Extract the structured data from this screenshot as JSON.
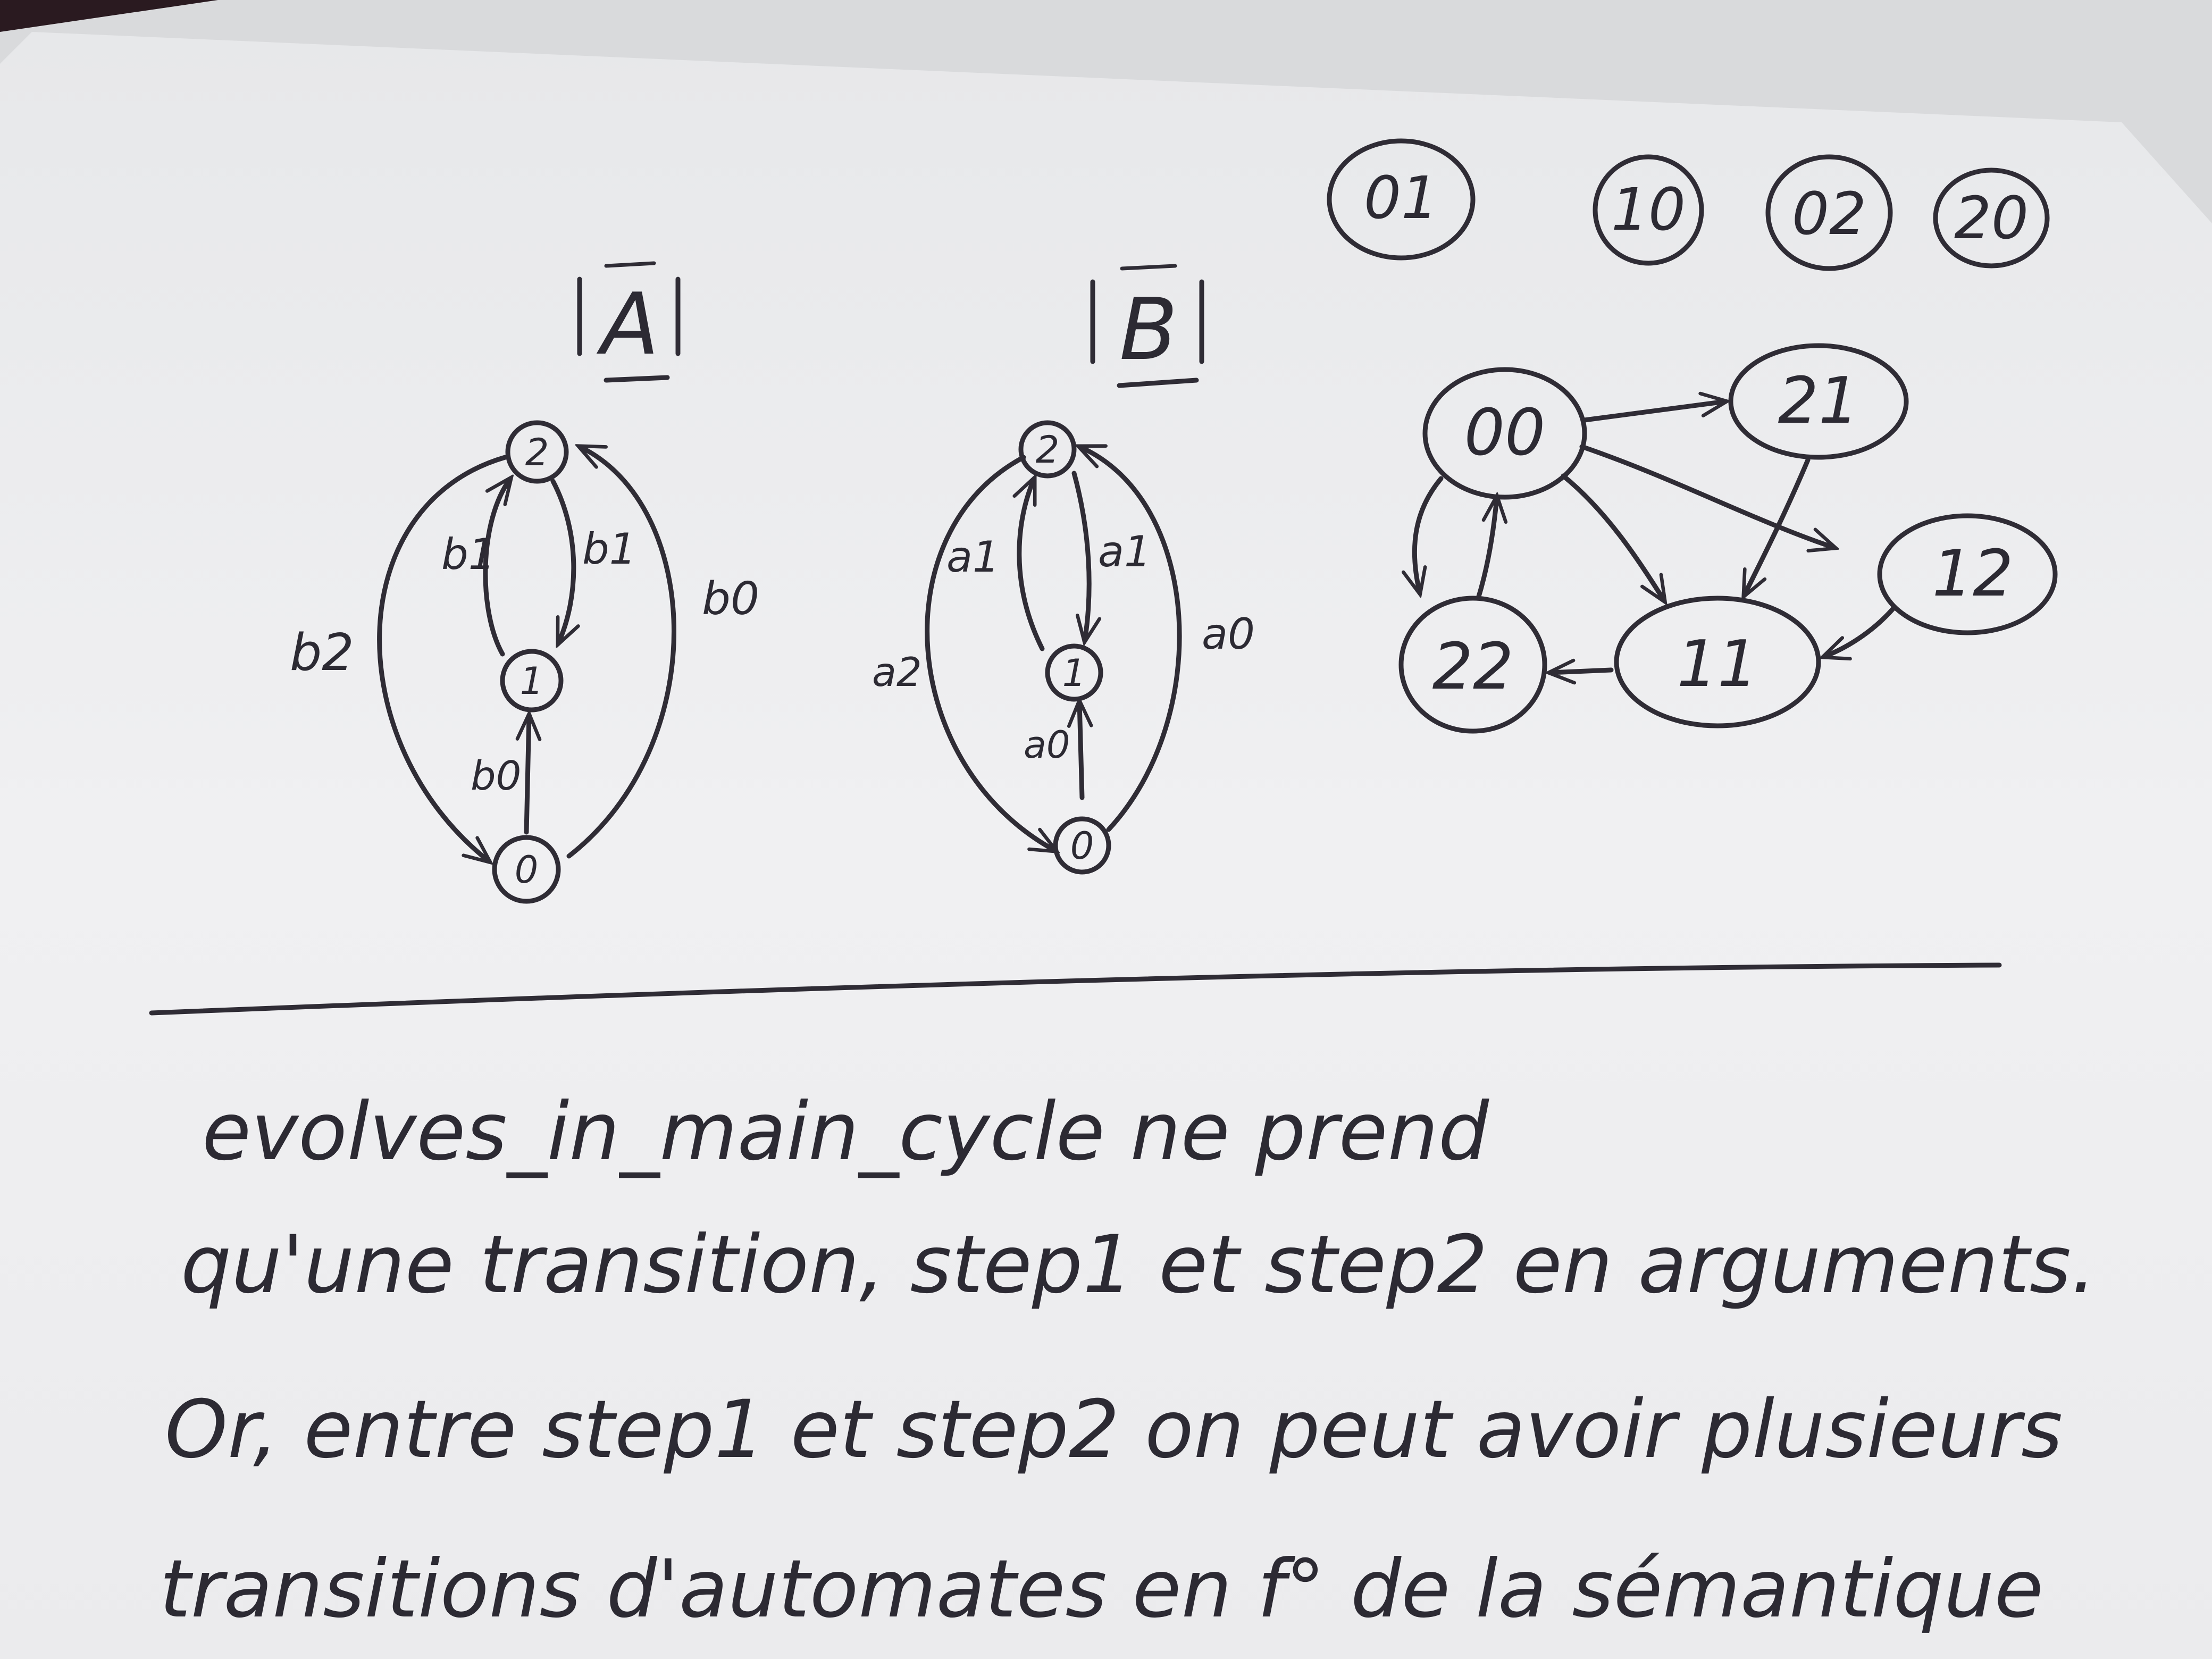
{
  "photo": {
    "subject": "handwritten notes on white paper",
    "background_color": "#6e2124",
    "paper_color": "#f0f0f1",
    "ink_color": "#2f2c35"
  },
  "automaton_a": {
    "title": "A",
    "states": [
      "2",
      "1",
      "0"
    ],
    "edge_labels": [
      "b1",
      "b1",
      "b2",
      "b0",
      "b0"
    ]
  },
  "automaton_b": {
    "title": "B",
    "states": [
      "2",
      "1",
      "0"
    ],
    "edge_labels": [
      "a1",
      "a1",
      "a2",
      "a0",
      "a0"
    ]
  },
  "product": {
    "isolated_states": [
      "01",
      "10",
      "02",
      "20"
    ],
    "graph_states": [
      "00",
      "21",
      "12",
      "22",
      "11"
    ]
  },
  "note_lines": [
    "evolves_in_main_cycle   ne prend",
    "qu'une transition, step1 et step2 en arguments.",
    "Or, entre step1 et step2 on peut avoir plusieurs",
    "transitions d'automates en f° de la sémantique"
  ]
}
